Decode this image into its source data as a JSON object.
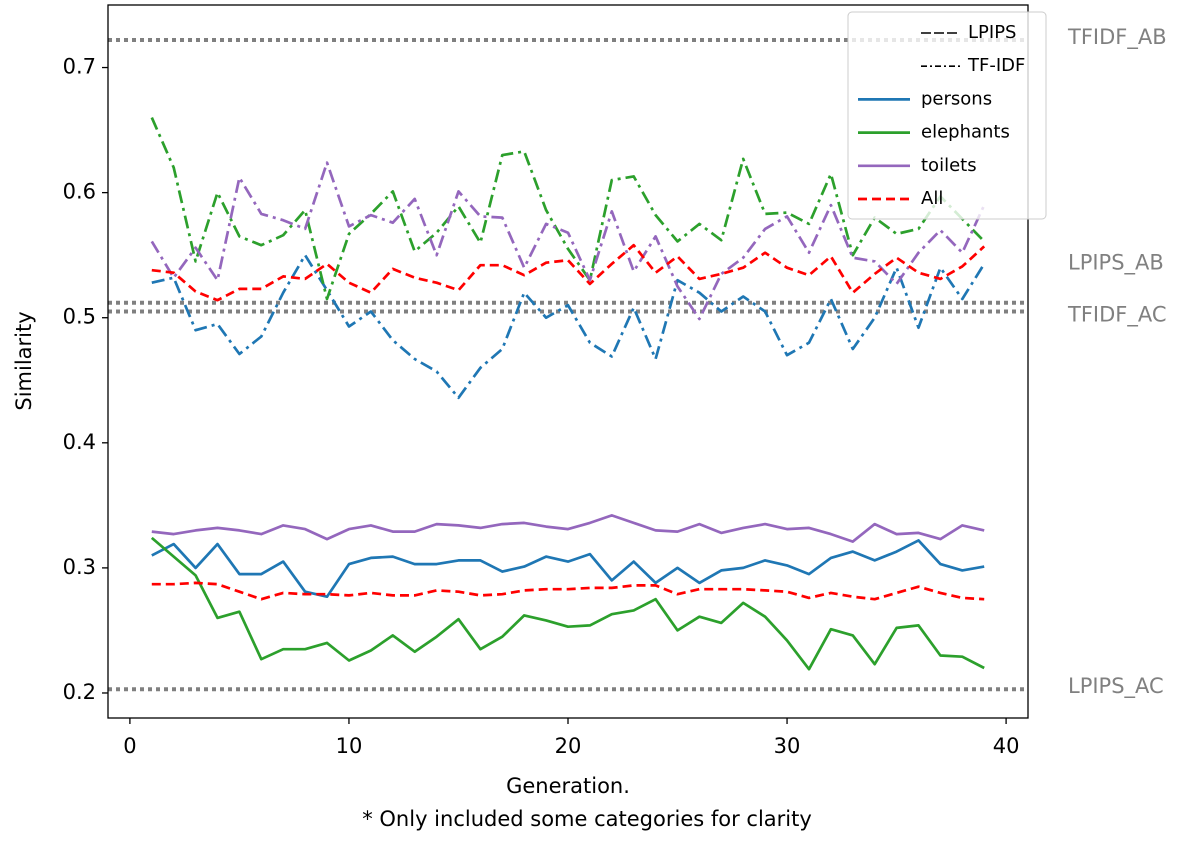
{
  "chart_data": {
    "type": "line",
    "xlabel": "Generation.",
    "caption": "* Only included some categories for clarity",
    "ylabel": "Similarity",
    "xlim": [
      -1,
      41
    ],
    "ylim": [
      0.18,
      0.75
    ],
    "xticks": [
      0,
      10,
      20,
      30,
      40
    ],
    "yticks": [
      0.2,
      0.3,
      0.4,
      0.5,
      0.6,
      0.7
    ],
    "grid": false,
    "legend_placement": "top-right",
    "legend": [
      {
        "label": "LPIPS",
        "style": "solid",
        "color": "#000000"
      },
      {
        "label": "TF-IDF",
        "style": "dashdot",
        "color": "#000000"
      },
      {
        "label": "persons",
        "style": "solid",
        "color": "#1f77b4"
      },
      {
        "label": "elephants",
        "style": "solid",
        "color": "#2ca02c"
      },
      {
        "label": "toilets",
        "style": "solid",
        "color": "#9467bd"
      },
      {
        "label": "All",
        "style": "dashed",
        "color": "#ff0000"
      }
    ],
    "reference_lines": [
      {
        "name": "TFIDF_AB",
        "value": 0.722
      },
      {
        "name": "LPIPS_AB",
        "value": 0.512
      },
      {
        "name": "TFIDF_AC",
        "value": 0.505
      },
      {
        "name": "LPIPS_AC",
        "value": 0.203
      }
    ],
    "x": [
      1,
      2,
      3,
      4,
      5,
      6,
      7,
      8,
      9,
      10,
      11,
      12,
      13,
      14,
      15,
      16,
      17,
      18,
      19,
      20,
      21,
      22,
      23,
      24,
      25,
      26,
      27,
      28,
      29,
      30,
      31,
      32,
      33,
      34,
      35,
      36,
      37,
      38,
      39
    ],
    "series": [
      {
        "category": "persons",
        "metric": "TF-IDF",
        "style": "dashdot",
        "color": "#1f77b4",
        "values": [
          0.528,
          0.532,
          0.49,
          0.495,
          0.471,
          0.485,
          0.52,
          0.55,
          0.522,
          0.493,
          0.505,
          0.482,
          0.467,
          0.457,
          0.436,
          0.46,
          0.475,
          0.52,
          0.5,
          0.51,
          0.48,
          0.469,
          0.508,
          0.467,
          0.53,
          0.52,
          0.505,
          0.517,
          0.505,
          0.47,
          0.48,
          0.515,
          0.475,
          0.5,
          0.54,
          0.492,
          0.54,
          0.515,
          0.543
        ]
      },
      {
        "category": "elephants",
        "metric": "TF-IDF",
        "style": "dashdot",
        "color": "#2ca02c",
        "values": [
          0.66,
          0.62,
          0.545,
          0.6,
          0.565,
          0.558,
          0.566,
          0.586,
          0.515,
          0.567,
          0.583,
          0.601,
          0.553,
          0.568,
          0.589,
          0.56,
          0.63,
          0.633,
          0.586,
          0.555,
          0.53,
          0.61,
          0.613,
          0.582,
          0.561,
          0.575,
          0.562,
          0.627,
          0.583,
          0.584,
          0.575,
          0.615,
          0.55,
          0.58,
          0.567,
          0.571,
          0.597,
          0.579,
          0.561
        ]
      },
      {
        "category": "toilets",
        "metric": "TF-IDF",
        "style": "dashdot",
        "color": "#9467bd",
        "values": [
          0.561,
          0.532,
          0.556,
          0.53,
          0.612,
          0.583,
          0.578,
          0.571,
          0.624,
          0.573,
          0.582,
          0.576,
          0.595,
          0.55,
          0.601,
          0.581,
          0.58,
          0.54,
          0.575,
          0.568,
          0.53,
          0.585,
          0.537,
          0.565,
          0.525,
          0.499,
          0.535,
          0.548,
          0.571,
          0.581,
          0.552,
          0.59,
          0.548,
          0.545,
          0.527,
          0.552,
          0.57,
          0.552,
          0.59
        ]
      },
      {
        "category": "All",
        "metric": "TF-IDF",
        "style": "dashed",
        "color": "#ff0000",
        "values": [
          0.538,
          0.536,
          0.521,
          0.514,
          0.523,
          0.523,
          0.533,
          0.531,
          0.543,
          0.528,
          0.52,
          0.539,
          0.532,
          0.528,
          0.522,
          0.542,
          0.542,
          0.534,
          0.544,
          0.546,
          0.527,
          0.543,
          0.558,
          0.536,
          0.549,
          0.531,
          0.535,
          0.54,
          0.552,
          0.54,
          0.534,
          0.549,
          0.52,
          0.535,
          0.548,
          0.536,
          0.531,
          0.541,
          0.557
        ]
      },
      {
        "category": "persons",
        "metric": "LPIPS",
        "style": "solid",
        "color": "#1f77b4",
        "values": [
          0.31,
          0.319,
          0.3,
          0.319,
          0.295,
          0.295,
          0.305,
          0.281,
          0.277,
          0.303,
          0.308,
          0.309,
          0.303,
          0.303,
          0.306,
          0.306,
          0.297,
          0.301,
          0.309,
          0.305,
          0.311,
          0.29,
          0.305,
          0.288,
          0.3,
          0.288,
          0.298,
          0.3,
          0.306,
          0.302,
          0.295,
          0.308,
          0.313,
          0.306,
          0.313,
          0.322,
          0.303,
          0.298,
          0.301
        ]
      },
      {
        "category": "elephants",
        "metric": "LPIPS",
        "style": "solid",
        "color": "#2ca02c",
        "values": [
          0.324,
          0.309,
          0.294,
          0.26,
          0.265,
          0.227,
          0.235,
          0.235,
          0.24,
          0.226,
          0.234,
          0.246,
          0.233,
          0.245,
          0.259,
          0.235,
          0.245,
          0.262,
          0.258,
          0.253,
          0.254,
          0.263,
          0.266,
          0.275,
          0.25,
          0.261,
          0.256,
          0.272,
          0.261,
          0.242,
          0.219,
          0.251,
          0.246,
          0.223,
          0.252,
          0.254,
          0.23,
          0.229,
          0.22
        ]
      },
      {
        "category": "toilets",
        "metric": "LPIPS",
        "style": "solid",
        "color": "#9467bd",
        "values": [
          0.329,
          0.327,
          0.33,
          0.332,
          0.33,
          0.327,
          0.334,
          0.331,
          0.323,
          0.331,
          0.334,
          0.329,
          0.329,
          0.335,
          0.334,
          0.332,
          0.335,
          0.336,
          0.333,
          0.331,
          0.336,
          0.342,
          0.336,
          0.33,
          0.329,
          0.335,
          0.328,
          0.332,
          0.335,
          0.331,
          0.332,
          0.327,
          0.321,
          0.335,
          0.327,
          0.328,
          0.323,
          0.334,
          0.33
        ]
      },
      {
        "category": "All",
        "metric": "LPIPS",
        "style": "dashed",
        "color": "#ff0000",
        "values": [
          0.287,
          0.287,
          0.288,
          0.287,
          0.281,
          0.275,
          0.28,
          0.279,
          0.279,
          0.278,
          0.28,
          0.278,
          0.278,
          0.282,
          0.281,
          0.278,
          0.279,
          0.282,
          0.283,
          0.283,
          0.284,
          0.284,
          0.286,
          0.286,
          0.279,
          0.283,
          0.283,
          0.283,
          0.282,
          0.281,
          0.276,
          0.28,
          0.277,
          0.275,
          0.28,
          0.285,
          0.28,
          0.276,
          0.275
        ]
      }
    ]
  }
}
